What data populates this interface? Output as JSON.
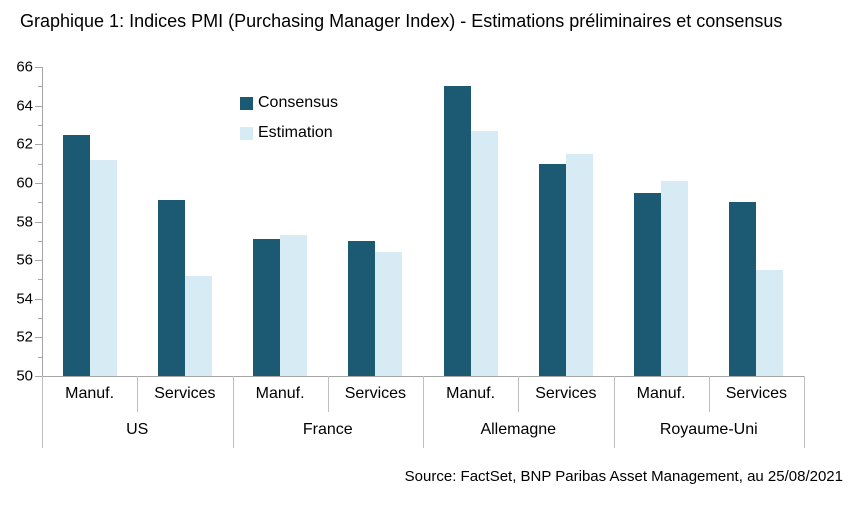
{
  "title": "Graphique 1: Indices PMI (Purchasing Manager Index) - Estimations préliminaires et consensus",
  "source": "Source: FactSet, BNP Paribas Asset Management, au 25/08/2021",
  "chart_data": {
    "type": "bar",
    "title": "Graphique 1: Indices PMI (Purchasing Manager Index) - Estimations préliminaires et consensus",
    "groups": [
      "US",
      "France",
      "Allemagne",
      "Royaume-Uni"
    ],
    "categories": [
      "Manuf.",
      "Services",
      "Manuf.",
      "Services",
      "Manuf.",
      "Services",
      "Manuf.",
      "Services"
    ],
    "series": [
      {
        "name": "Consensus",
        "color": "#1b5a72",
        "values": [
          62.5,
          59.1,
          57.1,
          57.0,
          65.0,
          61.0,
          59.5,
          59.0
        ]
      },
      {
        "name": "Estimation",
        "color": "#d7ebf5",
        "values": [
          61.2,
          55.2,
          57.3,
          56.4,
          62.7,
          61.5,
          60.1,
          55.5
        ]
      }
    ],
    "ylim": [
      50,
      66
    ],
    "y_ticks": [
      50,
      52,
      54,
      56,
      58,
      60,
      62,
      64,
      66
    ],
    "y_major_step": 2,
    "y_minor_step": 1,
    "grid": false,
    "legend_position": "top-left-inside",
    "axis_color": "#a6a6a6",
    "separator_color": "#bfbfbf"
  }
}
